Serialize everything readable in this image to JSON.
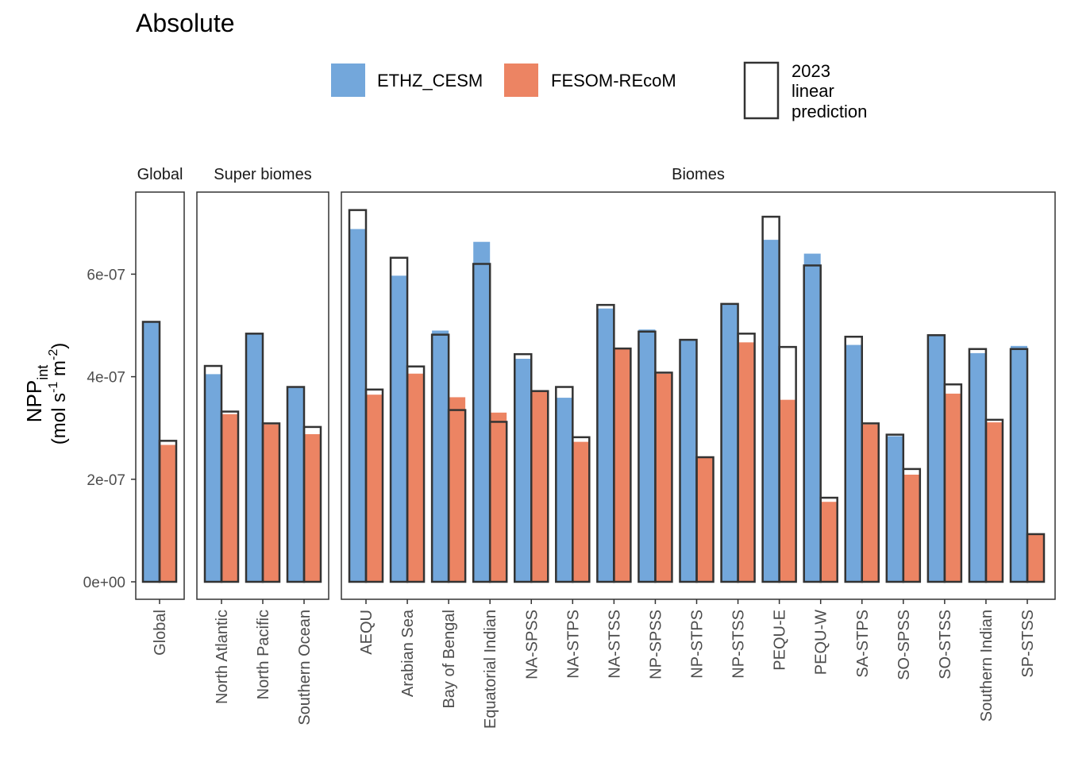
{
  "title": "Absolute",
  "legend": {
    "items": [
      {
        "label": "ETHZ_CESM",
        "color": "#73A7DB"
      },
      {
        "label": "FESOM-REcoM",
        "color": "#EC8463"
      }
    ],
    "outline_label_lines": [
      "2023",
      "linear",
      "prediction"
    ]
  },
  "y_axis": {
    "label_main": "NPP",
    "label_sub": "int",
    "label_units": "(mol s-1 m-2)",
    "units_parts": {
      "a": "(mol s",
      "exp1": "-1",
      "b": " m",
      "exp2": "-2",
      "c": ")"
    },
    "ticks": [
      0,
      2e-07,
      4e-07,
      6e-07
    ],
    "tick_labels": [
      "0e+00",
      "2e-07",
      "4e-07",
      "6e-07"
    ]
  },
  "chart_data": {
    "type": "bar",
    "title": "Absolute",
    "ylim": [
      0,
      7.5e-07
    ],
    "grid": false,
    "legend_position": "top",
    "series": [
      {
        "name": "ETHZ_CESM",
        "color": "#73A7DB"
      },
      {
        "name": "FESOM-REcoM",
        "color": "#EC8463"
      },
      {
        "name": "2023 linear prediction",
        "style": "outline"
      }
    ],
    "panels": [
      {
        "title": "Global",
        "categories": [
          "Global"
        ],
        "ETHZ_CESM": [
          5.07e-07
        ],
        "FESOM-REcoM": [
          2.67e-07
        ],
        "prediction_ETHZ_CESM": [
          5.07e-07
        ],
        "prediction_FESOM-REcoM": [
          2.75e-07
        ]
      },
      {
        "title": "Super biomes",
        "categories": [
          "North Atlantic",
          "North Pacific",
          "Southern Ocean"
        ],
        "ETHZ_CESM": [
          4.05e-07,
          4.84e-07,
          3.8e-07
        ],
        "FESOM-REcoM": [
          3.27e-07,
          3.07e-07,
          2.88e-07
        ],
        "prediction_ETHZ_CESM": [
          4.21e-07,
          4.84e-07,
          3.8e-07
        ],
        "prediction_FESOM-REcoM": [
          3.32e-07,
          3.09e-07,
          3.02e-07
        ]
      },
      {
        "title": "Biomes",
        "categories": [
          "AEQU",
          "Arabian Sea",
          "Bay of Bengal",
          "Equatorial Indian",
          "NA-SPSS",
          "NA-STPS",
          "NA-STSS",
          "NP-SPSS",
          "NP-STPS",
          "NP-STSS",
          "PEQU-E",
          "PEQU-W",
          "SA-STPS",
          "SO-SPSS",
          "SO-STSS",
          "Southern Indian",
          "SP-STSS"
        ],
        "ETHZ_CESM": [
          6.88e-07,
          5.97e-07,
          4.9e-07,
          6.63e-07,
          4.35e-07,
          3.59e-07,
          5.33e-07,
          4.92e-07,
          4.72e-07,
          5.42e-07,
          6.67e-07,
          6.4e-07,
          4.62e-07,
          2.84e-07,
          4.81e-07,
          4.46e-07,
          4.6e-07
        ],
        "FESOM-REcoM": [
          3.65e-07,
          4.06e-07,
          3.6e-07,
          3.3e-07,
          3.71e-07,
          2.73e-07,
          4.55e-07,
          4.06e-07,
          2.43e-07,
          4.67e-07,
          3.55e-07,
          1.56e-07,
          3.07e-07,
          2.09e-07,
          3.67e-07,
          3.11e-07,
          9.3e-08
        ],
        "prediction_ETHZ_CESM": [
          7.25e-07,
          6.32e-07,
          4.82e-07,
          6.2e-07,
          4.44e-07,
          3.8e-07,
          5.4e-07,
          4.88e-07,
          4.72e-07,
          5.42e-07,
          7.12e-07,
          6.17e-07,
          4.78e-07,
          2.87e-07,
          4.81e-07,
          4.54e-07,
          4.54e-07
        ],
        "prediction_FESOM-REcoM": [
          3.75e-07,
          4.2e-07,
          3.35e-07,
          3.12e-07,
          3.72e-07,
          2.82e-07,
          4.55e-07,
          4.08e-07,
          2.43e-07,
          4.84e-07,
          4.58e-07,
          1.64e-07,
          3.09e-07,
          2.2e-07,
          3.85e-07,
          3.16e-07,
          9.3e-08
        ]
      }
    ]
  }
}
